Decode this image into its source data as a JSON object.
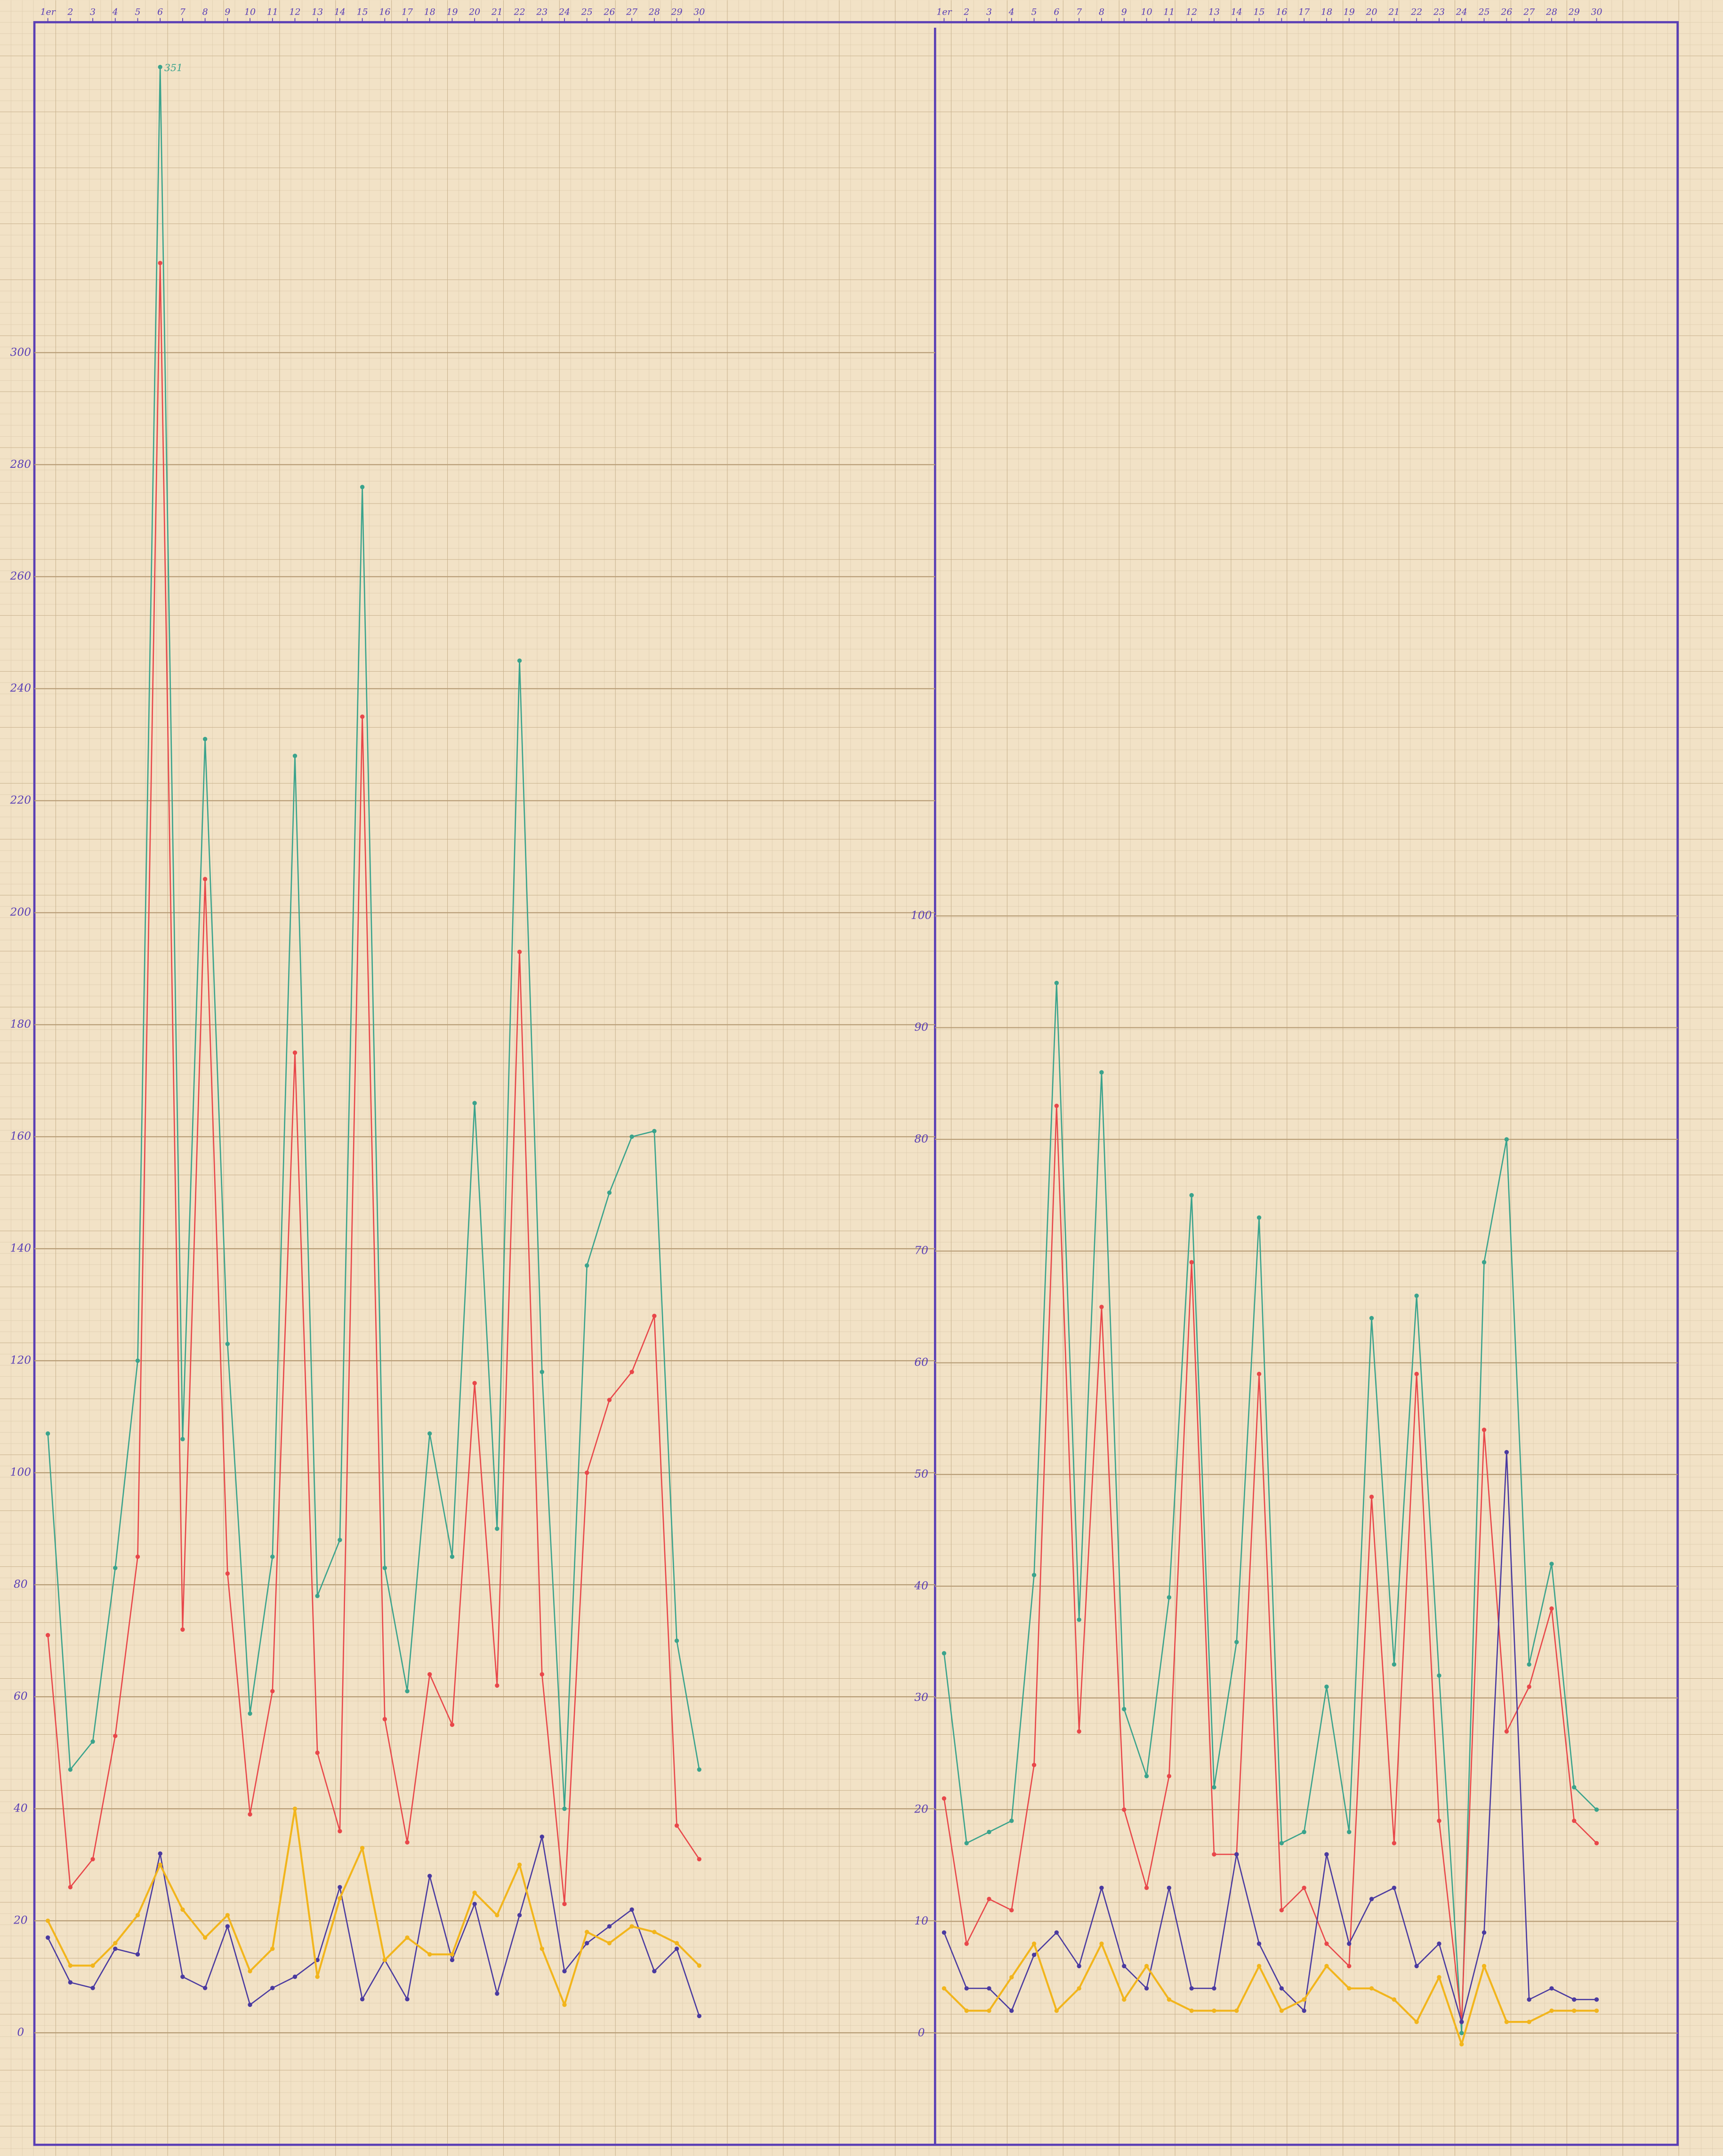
{
  "chart_data": [
    {
      "type": "line",
      "grid": true,
      "xlim": [
        0.4,
        40.5
      ],
      "ylim": [
        -20,
        359
      ],
      "xticks": [
        {
          "value": 1,
          "label": "1er"
        },
        2,
        3,
        4,
        5,
        6,
        7,
        8,
        9,
        10,
        11,
        12,
        13,
        14,
        15,
        16,
        17,
        18,
        19,
        20,
        21,
        22,
        23,
        24,
        25,
        26,
        27,
        28,
        29,
        30
      ],
      "yticks": [
        0,
        20,
        40,
        60,
        80,
        100,
        120,
        140,
        160,
        180,
        200,
        220,
        240,
        260,
        280,
        300
      ],
      "x": [
        1,
        2,
        3,
        4,
        5,
        6,
        7,
        8,
        9,
        10,
        11,
        12,
        13,
        14,
        15,
        16,
        17,
        18,
        19,
        20,
        21,
        22,
        23,
        24,
        25,
        26,
        27,
        28,
        29,
        30
      ],
      "series": [
        {
          "color": "#3aa38c",
          "values": [
            107,
            47,
            52,
            83,
            120,
            351,
            106,
            231,
            123,
            57,
            85,
            228,
            78,
            88,
            276,
            83,
            61,
            107,
            85,
            166,
            90,
            245,
            118,
            40,
            137,
            150,
            160,
            161,
            70,
            47
          ],
          "value_labels": [
            null,
            null,
            null,
            null,
            null,
            "351",
            null,
            null,
            null,
            null,
            null,
            null,
            null,
            null,
            null,
            null,
            null,
            null,
            null,
            null,
            null,
            null,
            null,
            null,
            null,
            null,
            null,
            null,
            null,
            null
          ]
        },
        {
          "color": "#e8474a",
          "values": [
            71,
            26,
            31,
            53,
            85,
            316,
            72,
            206,
            82,
            39,
            61,
            175,
            50,
            36,
            235,
            56,
            34,
            64,
            55,
            116,
            62,
            193,
            64,
            23,
            100,
            113,
            118,
            128,
            37,
            31
          ]
        },
        {
          "color": "#4a3aa0",
          "values": [
            17,
            9,
            8,
            15,
            14,
            32,
            10,
            8,
            19,
            5,
            8,
            10,
            13,
            26,
            6,
            13,
            6,
            28,
            13,
            23,
            7,
            21,
            35,
            11,
            16,
            19,
            22,
            11,
            15,
            3
          ]
        },
        {
          "color": "#f2b51c",
          "values": [
            20,
            12,
            12,
            16,
            21,
            30,
            22,
            17,
            21,
            11,
            15,
            40,
            10,
            24,
            33,
            13,
            17,
            14,
            14,
            25,
            21,
            30,
            15,
            5,
            18,
            16,
            19,
            18,
            16,
            12
          ]
        }
      ]
    },
    {
      "type": "line",
      "grid": true,
      "xlim": [
        0.6,
        33.6
      ],
      "ylim": [
        -10,
        180
      ],
      "xticks": [
        {
          "value": 1,
          "label": "1er"
        },
        2,
        3,
        4,
        5,
        6,
        7,
        8,
        9,
        10,
        11,
        12,
        13,
        14,
        15,
        16,
        17,
        18,
        19,
        20,
        21,
        22,
        23,
        24,
        25,
        26,
        27,
        28,
        29,
        30
      ],
      "yticks": [
        0,
        10,
        20,
        30,
        40,
        50,
        60,
        70,
        80,
        90,
        100
      ],
      "x": [
        1,
        2,
        3,
        4,
        5,
        6,
        7,
        8,
        9,
        10,
        11,
        12,
        13,
        14,
        15,
        16,
        17,
        18,
        19,
        20,
        21,
        22,
        23,
        24,
        25,
        26,
        27,
        28,
        29,
        30
      ],
      "series": [
        {
          "color": "#3aa38c",
          "values": [
            34,
            17,
            18,
            19,
            41,
            94,
            37,
            86,
            29,
            23,
            39,
            75,
            22,
            35,
            73,
            17,
            18,
            31,
            18,
            64,
            33,
            66,
            32,
            0,
            69,
            80,
            33,
            42,
            22,
            20
          ]
        },
        {
          "color": "#e8474a",
          "values": [
            21,
            8,
            12,
            11,
            24,
            83,
            27,
            65,
            20,
            13,
            23,
            69,
            16,
            16,
            59,
            11,
            13,
            8,
            6,
            48,
            17,
            59,
            19,
            1,
            54,
            27,
            31,
            38,
            19,
            17
          ]
        },
        {
          "color": "#4a3aa0",
          "values": [
            9,
            4,
            4,
            2,
            7,
            9,
            6,
            13,
            6,
            4,
            13,
            4,
            4,
            16,
            8,
            4,
            2,
            16,
            8,
            12,
            13,
            6,
            8,
            1,
            9,
            52,
            3,
            4,
            3,
            3
          ]
        },
        {
          "color": "#f2b51c",
          "values": [
            4,
            2,
            2,
            5,
            8,
            2,
            4,
            8,
            3,
            6,
            3,
            2,
            2,
            2,
            6,
            2,
            3,
            6,
            4,
            4,
            3,
            1,
            5,
            -1,
            6,
            1,
            1,
            2,
            2,
            2
          ]
        }
      ]
    }
  ]
}
